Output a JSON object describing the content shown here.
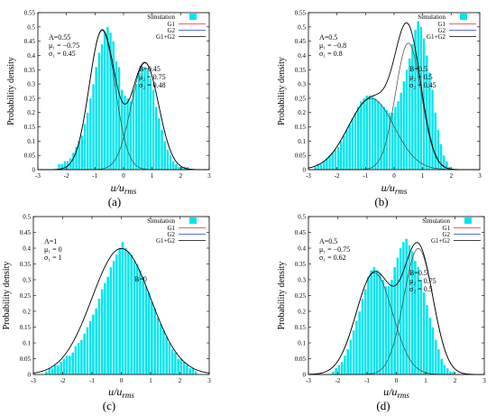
{
  "figure": {
    "ylabel": "Probability density",
    "xlabel_main": "u/u",
    "xlabel_sub": "rms",
    "legend_labels": [
      "Simulation",
      "G1",
      "G2",
      "G1+G2"
    ],
    "colors": {
      "hist": "#00e5ee",
      "g1": "#e03030",
      "g2": "#2040d0",
      "sum": "#000000"
    }
  },
  "chart_data": [
    {
      "type": "bar",
      "caption": "(a)",
      "xlim": [
        -3,
        3
      ],
      "ylim": [
        0,
        0.55
      ],
      "x_ticks": [
        -3,
        -2,
        -1,
        0,
        1,
        2,
        3
      ],
      "y_ticks": [
        0,
        0.05,
        0.1,
        0.15,
        0.2,
        0.25,
        0.3,
        0.35,
        0.4,
        0.45,
        0.5,
        0.55
      ],
      "y_tick_labels": [
        "0",
        "0.05",
        "0.1",
        "0.15",
        "0.2",
        "0.25",
        "0.3",
        "0.35",
        "0.4",
        "0.45",
        "0.5",
        "0.55"
      ],
      "params": {
        "A": 0.55,
        "mu1": -0.75,
        "s1": 0.45,
        "B": 0.45,
        "mu2": 0.75,
        "s2": 0.48
      },
      "annotations_left": [
        "A=0.55",
        "μ₁ = −0.75",
        "σ₁ = 0.45"
      ],
      "annotations_right": [
        "B=0.45",
        "μ₂ = 0.75",
        "σ₂ = 0.48"
      ],
      "bins": {
        "start": -2.3,
        "end": 2.3,
        "width": 0.1
      },
      "hist_values": [
        0.02,
        0.02,
        0.03,
        0.03,
        0.04,
        0.06,
        0.08,
        0.1,
        0.12,
        0.16,
        0.2,
        0.25,
        0.3,
        0.36,
        0.41,
        0.44,
        0.48,
        0.5,
        0.48,
        0.45,
        0.38,
        0.36,
        0.28,
        0.26,
        0.25,
        0.24,
        0.28,
        0.3,
        0.34,
        0.36,
        0.36,
        0.35,
        0.32,
        0.28,
        0.22,
        0.18,
        0.14,
        0.1,
        0.07,
        0.05,
        0.03,
        0.02,
        0.01,
        0.01,
        0.01,
        0.01
      ]
    },
    {
      "type": "bar",
      "caption": "(b)",
      "xlim": [
        -3,
        3
      ],
      "ylim": [
        0,
        0.55
      ],
      "x_ticks": [
        -3,
        -2,
        -1,
        0,
        1,
        2,
        3
      ],
      "y_ticks": [
        0,
        0.05,
        0.1,
        0.15,
        0.2,
        0.25,
        0.3,
        0.35,
        0.4,
        0.45,
        0.5,
        0.55
      ],
      "y_tick_labels": [
        "0",
        "0.05",
        "0.1",
        "0.15",
        "0.2",
        "0.25",
        "0.3",
        "0.35",
        "0.4",
        "0.45",
        "0.5",
        "0.55"
      ],
      "params": {
        "A": 0.5,
        "mu1": -0.8,
        "s1": 0.8,
        "B": 0.5,
        "mu2": 0.5,
        "s2": 0.45
      },
      "annotations_left": [
        "A=0.5",
        "μ₁ = −0.8",
        "σ₁ = 0.8"
      ],
      "annotations_right": [
        "B=0.5",
        "μ₂ = 0.5",
        "σ₂ = 0.45"
      ],
      "bins": {
        "start": -2.8,
        "end": 2.0,
        "width": 0.1
      },
      "hist_values": [
        0.01,
        0.02,
        0.02,
        0.03,
        0.04,
        0.05,
        0.06,
        0.07,
        0.08,
        0.1,
        0.12,
        0.14,
        0.16,
        0.18,
        0.2,
        0.22,
        0.24,
        0.25,
        0.26,
        0.26,
        0.26,
        0.25,
        0.24,
        0.23,
        0.22,
        0.21,
        0.2,
        0.2,
        0.22,
        0.24,
        0.27,
        0.31,
        0.35,
        0.39,
        0.44,
        0.49,
        0.52,
        0.5,
        0.46,
        0.4,
        0.34,
        0.28,
        0.2,
        0.14,
        0.09,
        0.05,
        0.03,
        0.01
      ]
    },
    {
      "type": "bar",
      "caption": "(c)",
      "xlim": [
        -3,
        3
      ],
      "ylim": [
        0,
        0.5
      ],
      "x_ticks": [
        -3,
        -2,
        -1,
        0,
        1,
        2,
        3
      ],
      "y_ticks": [
        0,
        0.05,
        0.1,
        0.15,
        0.2,
        0.25,
        0.3,
        0.35,
        0.4,
        0.45,
        0.5
      ],
      "y_tick_labels": [
        "0",
        "0.05",
        "0.1",
        "0.15",
        "0.2",
        "0.25",
        "0.3",
        "0.35",
        "0.4",
        "0.45",
        "0.5"
      ],
      "params": {
        "A": 1,
        "mu1": 0,
        "s1": 1,
        "B": 0,
        "mu2": 0,
        "s2": 1
      },
      "annotations_left": [
        "A=1",
        "μ₁ = 0",
        "σ₁ = 1"
      ],
      "annotations_right": [
        "B=0"
      ],
      "bins": {
        "start": -2.6,
        "end": 2.6,
        "width": 0.1
      },
      "hist_values": [
        0.01,
        0.02,
        0.02,
        0.03,
        0.03,
        0.04,
        0.05,
        0.06,
        0.06,
        0.07,
        0.09,
        0.1,
        0.11,
        0.13,
        0.15,
        0.17,
        0.19,
        0.21,
        0.24,
        0.27,
        0.29,
        0.31,
        0.34,
        0.36,
        0.38,
        0.4,
        0.42,
        0.4,
        0.39,
        0.38,
        0.36,
        0.35,
        0.33,
        0.31,
        0.28,
        0.26,
        0.23,
        0.21,
        0.18,
        0.16,
        0.14,
        0.12,
        0.1,
        0.08,
        0.07,
        0.05,
        0.05,
        0.04,
        0.03,
        0.02,
        0.02,
        0.01
      ]
    },
    {
      "type": "bar",
      "caption": "(d)",
      "xlim": [
        -3,
        3
      ],
      "ylim": [
        0,
        0.5
      ],
      "x_ticks": [
        -3,
        -2,
        -1,
        0,
        1,
        2,
        3
      ],
      "y_ticks": [
        0,
        0.05,
        0.1,
        0.15,
        0.2,
        0.25,
        0.3,
        0.35,
        0.4,
        0.45,
        0.5
      ],
      "y_tick_labels": [
        "0",
        "0.05",
        "0.1",
        "0.15",
        "0.2",
        "0.25",
        "0.3",
        "0.35",
        "0.4",
        "0.45",
        "0.5"
      ],
      "params": {
        "A": 0.5,
        "mu1": -0.75,
        "s1": 0.62,
        "B": 0.5,
        "mu2": 0.75,
        "s2": 0.5
      },
      "annotations_left": [
        "A=0.5",
        "μ₁ = −0.75",
        "σ₁ = 0.62"
      ],
      "annotations_right": [
        "B=0.5",
        "μ₂ = 0.75",
        "σ₂ = 0.5"
      ],
      "bins": {
        "start": -2.2,
        "end": 2.0,
        "width": 0.1
      },
      "hist_values": [
        0.01,
        0.02,
        0.03,
        0.04,
        0.06,
        0.08,
        0.11,
        0.14,
        0.17,
        0.2,
        0.24,
        0.27,
        0.31,
        0.33,
        0.34,
        0.33,
        0.32,
        0.3,
        0.28,
        0.28,
        0.3,
        0.34,
        0.37,
        0.4,
        0.42,
        0.43,
        0.41,
        0.39,
        0.36,
        0.34,
        0.3,
        0.26,
        0.22,
        0.18,
        0.15,
        0.11,
        0.08,
        0.05,
        0.03,
        0.02,
        0.01,
        0.01
      ]
    }
  ]
}
